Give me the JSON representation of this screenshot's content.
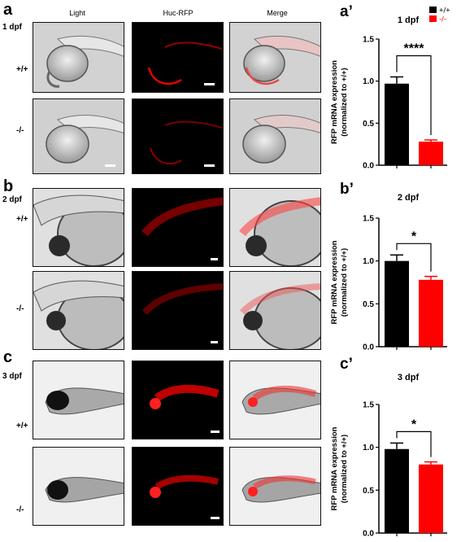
{
  "columns": [
    "Light",
    "Huc-RFP",
    "Merge"
  ],
  "panels": [
    {
      "letter": "a",
      "day": "1 dpf",
      "genotypes": [
        "+/+",
        "-/-"
      ]
    },
    {
      "letter": "b",
      "day": "2 dpf",
      "genotypes": [
        "+/+",
        "-/-"
      ]
    },
    {
      "letter": "c",
      "day": "3 dpf",
      "genotypes": [
        "+/+",
        "-/-"
      ]
    }
  ],
  "chart_data": [
    {
      "type": "bar",
      "panel": "a’",
      "title": "1 dpf",
      "ylabel": "RFP mRNA expression (normalized to +/+)",
      "ylabel_line1": "RFP mRNA expression",
      "ylabel_line2": "(normalized to +/+)",
      "categories": [
        "+/+",
        "-/-"
      ],
      "values": [
        0.97,
        0.28
      ],
      "errors": [
        0.08,
        0.02
      ],
      "colors": [
        "#000000",
        "#ff0000"
      ],
      "ylim": [
        0,
        1.5
      ],
      "yticks": [
        "0.0",
        "0.5",
        "1.0",
        "1.5"
      ],
      "significance": "****",
      "legend": [
        {
          "label": "+/+",
          "color": "#000000"
        },
        {
          "label": "-/-",
          "color": "#ff0000"
        }
      ],
      "legend_position": "top-right"
    },
    {
      "type": "bar",
      "panel": "b’",
      "title": "2 dpf",
      "ylabel": "RFP mRNA expression (normalized to +/+)",
      "ylabel_line1": "RFP mRNA expression",
      "ylabel_line2": "(normalized to +/+)",
      "categories": [
        "+/+",
        "-/-"
      ],
      "values": [
        1.0,
        0.78
      ],
      "errors": [
        0.07,
        0.04
      ],
      "colors": [
        "#000000",
        "#ff0000"
      ],
      "ylim": [
        0,
        1.5
      ],
      "yticks": [
        "0.0",
        "0.5",
        "1.0",
        "1.5"
      ],
      "significance": "*"
    },
    {
      "type": "bar",
      "panel": "c’",
      "title": "3 dpf",
      "ylabel": "RFP mRNA expression (normalized to +/+)",
      "ylabel_line1": "RFP mRNA expression",
      "ylabel_line2": "(normalized to +/+)",
      "categories": [
        "+/+",
        "-/-"
      ],
      "values": [
        0.98,
        0.8
      ],
      "errors": [
        0.07,
        0.03
      ],
      "colors": [
        "#000000",
        "#ff0000"
      ],
      "ylim": [
        0,
        1.5
      ],
      "yticks": [
        "0.0",
        "0.5",
        "1.0",
        "1.5"
      ],
      "significance": "*"
    }
  ]
}
